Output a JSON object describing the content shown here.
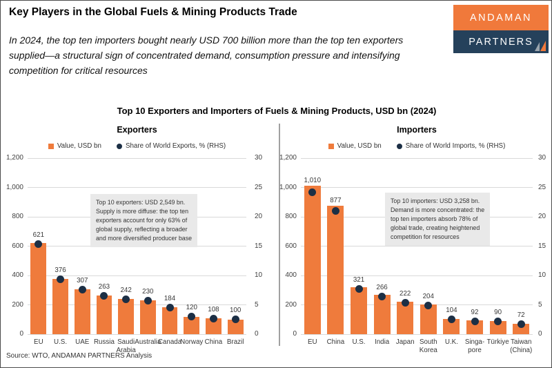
{
  "header": {
    "title": "Key Players in the Global Fuels & Mining Products Trade",
    "subtitle": "In 2024, the top ten importers bought nearly USD 700 billion more than the top ten exporters\nsupplied—a structural sign of concentrated demand, consumption pressure and intensifying\ncompetition for critical resources",
    "logo": {
      "line1": "ANDAMAN",
      "line2": "PARTNERS"
    }
  },
  "chart_title": "Top 10 Exporters and Importers of Fuels & Mining Products, USD bn (2024)",
  "source": "Source: WTO, ANDAMAN PARTNERS Analysis",
  "colors": {
    "bar": "#EF7B3C",
    "dot": "#1C2F45",
    "grid": "#D9D9D9",
    "annotation_bg": "#E9E9E9",
    "logo_orange": "#F0793B",
    "logo_navy": "#25415B",
    "divider": "#A0A0A0",
    "sail_gray": "#9AA4AD"
  },
  "chart_data": [
    {
      "type": "bar",
      "panel_title": "Exporters",
      "legend": [
        {
          "label": "Value, USD bn",
          "marker": "square"
        },
        {
          "label": "Share of World Exports, % (RHS)",
          "marker": "circle"
        }
      ],
      "categories": [
        "EU",
        "U.S.",
        "UAE",
        "Russia",
        "Saudi\nArabia",
        "Australia",
        "Canada",
        "Norway",
        "China",
        "Brazil"
      ],
      "series": [
        {
          "name": "Value, USD bn",
          "type": "bar",
          "axis": "left",
          "values": [
            621,
            376,
            307,
            263,
            242,
            230,
            184,
            120,
            108,
            100
          ],
          "labels": [
            "621",
            "376",
            "307",
            "263",
            "242",
            "230",
            "184",
            "120",
            "108",
            "100"
          ]
        },
        {
          "name": "Share of World Exports, % (RHS)",
          "type": "scatter",
          "axis": "right",
          "values": [
            15.3,
            9.3,
            7.6,
            6.5,
            6.0,
            5.7,
            4.5,
            3.0,
            2.7,
            2.5
          ]
        }
      ],
      "axis_left": {
        "range": [
          0,
          1200
        ],
        "ticks": [
          "0",
          "200",
          "400",
          "600",
          "800",
          "1,000",
          "1,200"
        ]
      },
      "axis_right": {
        "range": [
          0,
          30
        ],
        "ticks": [
          "0",
          "5",
          "10",
          "15",
          "20",
          "25",
          "30"
        ]
      },
      "grid": true,
      "annotation": "Top 10 exporters: USD 2,549 bn.\nSupply is more diffuse: the top ten\nexporters account for only 63% of\nglobal supply, reflecting a broader\nand more diversified producer base"
    },
    {
      "type": "bar",
      "panel_title": "Importers",
      "legend": [
        {
          "label": "Value, USD bn",
          "marker": "square"
        },
        {
          "label": "Share of World Imports, % (RHS)",
          "marker": "circle"
        }
      ],
      "categories": [
        "EU",
        "China",
        "U.S.",
        "India",
        "Japan",
        "South\nKorea",
        "U.K.",
        "Singa-\npore",
        "Türkiye",
        "Taiwan\n(China)"
      ],
      "series": [
        {
          "name": "Value, USD bn",
          "type": "bar",
          "axis": "left",
          "values": [
            1010,
            877,
            321,
            266,
            222,
            204,
            104,
            92,
            90,
            72
          ],
          "labels": [
            "1,010",
            "877",
            "321",
            "266",
            "222",
            "204",
            "104",
            "92",
            "90",
            "72"
          ]
        },
        {
          "name": "Share of World Imports, % (RHS)",
          "type": "scatter",
          "axis": "right",
          "values": [
            24.2,
            21.0,
            7.7,
            6.4,
            5.3,
            4.9,
            2.5,
            2.2,
            2.2,
            1.7
          ]
        }
      ],
      "axis_left": {
        "range": [
          0,
          1200
        ],
        "ticks": [
          "0",
          "200",
          "400",
          "600",
          "800",
          "1,000",
          "1,200"
        ]
      },
      "axis_right": {
        "range": [
          0,
          30
        ],
        "ticks": [
          "0",
          "5",
          "10",
          "15",
          "20",
          "25",
          "30"
        ]
      },
      "grid": true,
      "annotation": "Top 10 importers: USD 3,258 bn.\nDemand is more concentrated: the\ntop ten importers absorb 78% of\nglobal trade, creating heightened\ncompetition for resources"
    }
  ]
}
